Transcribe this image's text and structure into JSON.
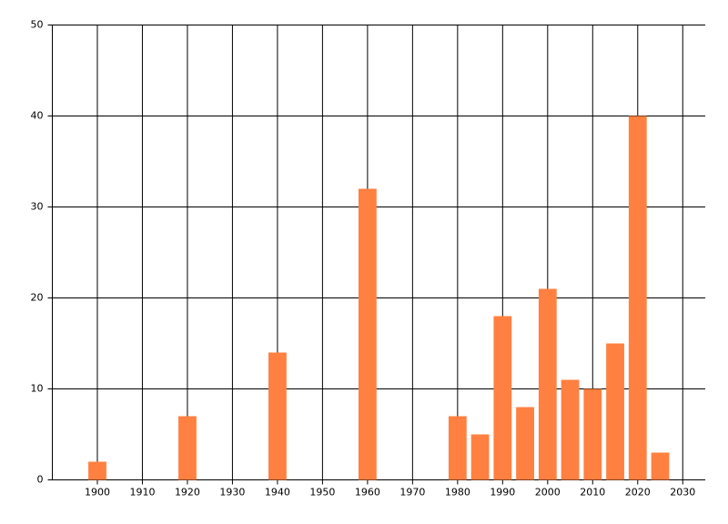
{
  "chart_data": {
    "type": "bar",
    "x": [
      1900,
      1920,
      1940,
      1960,
      1980,
      1985,
      1990,
      1995,
      2000,
      2005,
      2010,
      2015,
      2020,
      2025
    ],
    "values": [
      2,
      7,
      14,
      32,
      7,
      5,
      18,
      8,
      21,
      11,
      10,
      15,
      40,
      3
    ],
    "color": "#ff8040",
    "xlim": [
      1890,
      2035
    ],
    "xticks": [
      1900,
      1910,
      1920,
      1930,
      1940,
      1950,
      1960,
      1970,
      1980,
      1990,
      2000,
      2010,
      2020,
      2030
    ],
    "ylim": [
      0,
      50
    ],
    "yticks": [
      0,
      10,
      20,
      30,
      40,
      50
    ],
    "grid": true
  }
}
